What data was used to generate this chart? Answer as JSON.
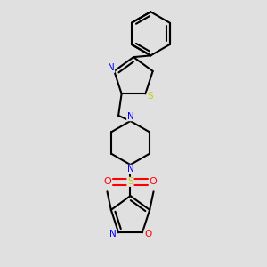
{
  "background_color": "#e0e0e0",
  "bond_color": "#000000",
  "N_color": "#0000ff",
  "S_color": "#cccc00",
  "O_color": "#ff0000",
  "figsize": [
    3.0,
    3.0
  ],
  "dpi": 100,
  "xlim": [
    -2.2,
    2.2
  ],
  "ylim": [
    -4.2,
    4.2
  ]
}
